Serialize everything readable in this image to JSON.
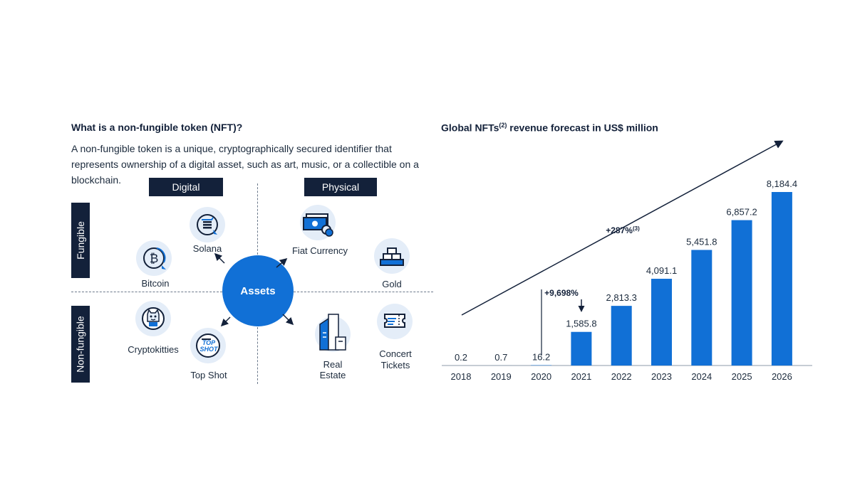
{
  "left": {
    "title": "What is a non-fungible token (NFT)?",
    "description": "A non-fungible token is a unique, cryptographically secured identifier that represents ownership of a digital asset, such as art, music, or a collectible on a blockchain.",
    "columns": {
      "digital": "Digital",
      "physical": "Physical"
    },
    "rows": {
      "fungible": "Fungible",
      "non_fungible": "Non-fungible"
    },
    "center": "Assets",
    "assets": {
      "solana": "Solana",
      "bitcoin": "Bitcoin",
      "fiat": "Fiat Currency",
      "gold": "Gold",
      "cryptokitties": "Cryptokitties",
      "topshot": "Top Shot",
      "topshot_logo_line1": "TOP",
      "topshot_logo_line2": "SHOT",
      "real_estate_1": "Real",
      "real_estate_2": "Estate",
      "concert_1": "Concert",
      "concert_2": "Tickets"
    },
    "icons": {
      "solana": "solana-icon",
      "bitcoin": "bitcoin-icon",
      "fiat": "banknote-icon",
      "gold": "gold-bars-icon",
      "cryptokitties": "cryptokitty-icon",
      "topshot": "top-shot-logo",
      "real_estate": "building-icon",
      "concert": "ticket-icon"
    }
  },
  "right": {
    "title_pre": "Global NFTs",
    "title_sup": "(2)",
    "title_post": " revenue forecast in US$ million"
  },
  "chart_data": {
    "type": "bar",
    "title": "Global NFTs(2) revenue forecast in US$ million",
    "categories": [
      "2018",
      "2019",
      "2020",
      "2021",
      "2022",
      "2023",
      "2024",
      "2025",
      "2026"
    ],
    "values": [
      0.2,
      0.7,
      16.2,
      1585.8,
      2813.3,
      4091.1,
      5451.8,
      6857.2,
      8184.4
    ],
    "value_labels": [
      "0.2",
      "0.7",
      "16.2",
      "1,585.8",
      "2,813.3",
      "4,091.1",
      "5,451.8",
      "6,857.2",
      "8,184.4"
    ],
    "ylim": [
      0,
      8184.4
    ],
    "annotations": [
      {
        "text": "+9,698%",
        "target": "2021"
      },
      {
        "text": "+287%",
        "sup": "(3)"
      }
    ],
    "bar_color": "#1170d6",
    "grid": false
  }
}
